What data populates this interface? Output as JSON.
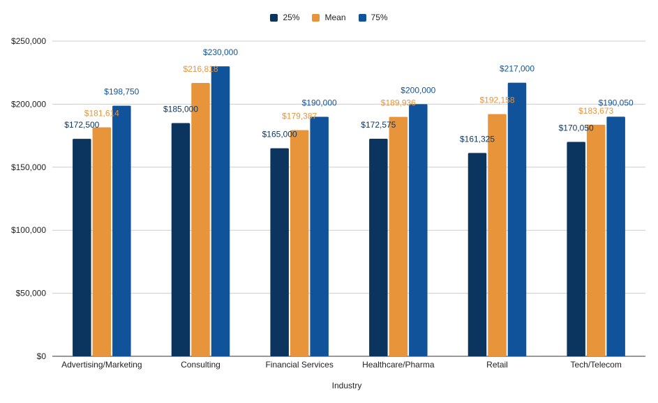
{
  "chart_data": {
    "type": "bar",
    "xlabel": "Industry",
    "ylabel": "",
    "ylim": [
      0,
      250000
    ],
    "yticks": [
      0,
      50000,
      100000,
      150000,
      200000,
      250000
    ],
    "ytick_labels": [
      "$0",
      "$50,000",
      "$100,000",
      "$150,000",
      "$200,000",
      "$250,000"
    ],
    "grid": true,
    "legend_position": "top-center",
    "categories": [
      "Advertising/Marketing",
      "Consulting",
      "Financial Services",
      "Healthcare/Pharma",
      "Retail",
      "Tech/Telecom"
    ],
    "series": [
      {
        "name": "25%",
        "color": "#0b355f",
        "label_color": "#0b355f",
        "values": [
          172500,
          185000,
          165000,
          172575,
          161325,
          170050
        ],
        "labels": [
          "$172,500",
          "$185,000",
          "$165,000",
          "$172,575",
          "$161,325",
          "$170,050"
        ]
      },
      {
        "name": "Mean",
        "color": "#e8943a",
        "label_color": "#e8943a",
        "values": [
          181614,
          216818,
          179387,
          189936,
          192158,
          183673
        ],
        "labels": [
          "$181,614",
          "$216,818",
          "$179,387",
          "$189,936",
          "$192,158",
          "$183,673"
        ]
      },
      {
        "name": "75%",
        "color": "#11539a",
        "label_color": "#11539a",
        "values": [
          198750,
          230000,
          190000,
          200000,
          217000,
          190050
        ],
        "labels": [
          "$198,750",
          "$230,000",
          "$190,000",
          "$200,000",
          "$217,000",
          "$190,050"
        ]
      }
    ]
  }
}
